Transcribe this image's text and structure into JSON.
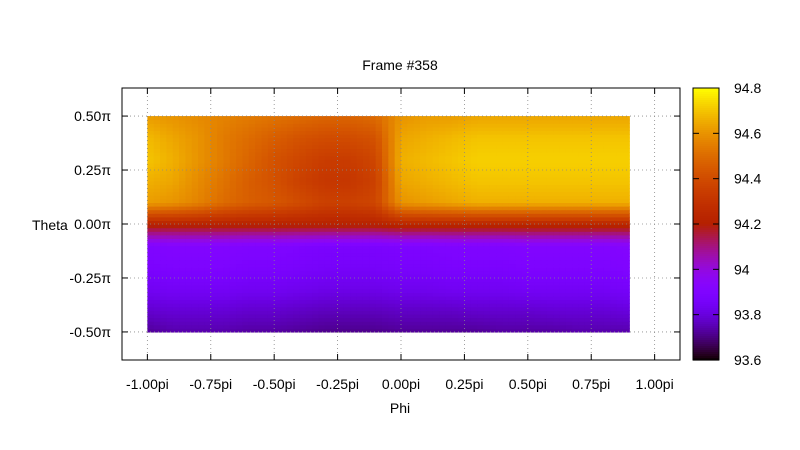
{
  "chart_data": {
    "type": "heatmap",
    "title": "Frame #358",
    "xlabel": "Phi",
    "ylabel": "Theta",
    "xlim": [
      -1.1,
      1.1
    ],
    "ylim": [
      -0.63,
      0.63
    ],
    "x_ticks": [
      -1.0,
      -0.75,
      -0.5,
      -0.25,
      0.0,
      0.25,
      0.5,
      0.75,
      1.0
    ],
    "x_tick_labels": [
      "-1.00pi",
      "-0.75pi",
      "-0.50pi",
      "-0.25pi",
      "0.00pi",
      "0.25pi",
      "0.50pi",
      "0.75pi",
      "1.00pi"
    ],
    "y_ticks": [
      0.5,
      0.25,
      0.0,
      -0.25,
      -0.5
    ],
    "y_tick_labels": [
      "0.50π",
      "0.25π",
      "0.00π",
      "-0.25π",
      "-0.50π"
    ],
    "grid": true,
    "data_extent": {
      "phi": [
        -1.0,
        0.9
      ],
      "theta": [
        -0.5,
        0.5
      ]
    },
    "colorbar": {
      "range": [
        93.6,
        94.8
      ],
      "ticks": [
        94.8,
        94.6,
        94.4,
        94.2,
        94,
        93.8,
        93.6
      ],
      "tick_labels": [
        "94.8",
        "94.6",
        "94.4",
        "94.2",
        "94",
        "93.8",
        "93.6"
      ],
      "palette": "gnuplot-pm3d-black-blue-violet-red-yellow"
    },
    "grid_phi": [
      -1.0,
      -0.9,
      -0.8,
      -0.7,
      -0.6,
      -0.5,
      -0.4,
      -0.3,
      -0.2,
      -0.1,
      0.0,
      0.1,
      0.2,
      0.3,
      0.4,
      0.5,
      0.6,
      0.7,
      0.8,
      0.9
    ],
    "grid_theta": [
      -0.5,
      -0.4,
      -0.3,
      -0.2,
      -0.1,
      0.0,
      0.1,
      0.2,
      0.3,
      0.4,
      0.5
    ],
    "values": [
      [
        93.72,
        93.74,
        93.74,
        93.74,
        93.73,
        93.73,
        93.72,
        93.71,
        93.71,
        93.71,
        93.72,
        93.72,
        93.72,
        93.72,
        93.73,
        93.73,
        93.73,
        93.74,
        93.74,
        93.74
      ],
      [
        93.78,
        93.79,
        93.79,
        93.79,
        93.78,
        93.78,
        93.77,
        93.76,
        93.76,
        93.76,
        93.77,
        93.77,
        93.77,
        93.78,
        93.78,
        93.78,
        93.79,
        93.79,
        93.79,
        93.8
      ],
      [
        93.84,
        93.85,
        93.85,
        93.85,
        93.84,
        93.84,
        93.83,
        93.82,
        93.82,
        93.82,
        93.83,
        93.83,
        93.84,
        93.84,
        93.84,
        93.85,
        93.85,
        93.85,
        93.85,
        93.86
      ],
      [
        93.88,
        93.89,
        93.89,
        93.89,
        93.88,
        93.88,
        93.87,
        93.86,
        93.86,
        93.86,
        93.87,
        93.87,
        93.88,
        93.88,
        93.88,
        93.89,
        93.89,
        93.89,
        93.89,
        93.9
      ],
      [
        93.9,
        93.91,
        93.91,
        93.91,
        93.9,
        93.9,
        93.89,
        93.88,
        93.88,
        93.88,
        93.89,
        93.89,
        93.9,
        93.9,
        93.9,
        93.91,
        93.91,
        93.91,
        93.91,
        93.92
      ],
      [
        94.22,
        94.22,
        94.22,
        94.22,
        94.22,
        94.22,
        94.22,
        94.22,
        94.22,
        94.22,
        94.24,
        94.24,
        94.24,
        94.24,
        94.24,
        94.24,
        94.24,
        94.24,
        94.24,
        94.24
      ],
      [
        94.62,
        94.6,
        94.56,
        94.5,
        94.46,
        94.44,
        94.4,
        94.36,
        94.36,
        94.38,
        94.6,
        94.62,
        94.64,
        94.66,
        94.66,
        94.66,
        94.66,
        94.66,
        94.66,
        94.66
      ],
      [
        94.66,
        94.64,
        94.58,
        94.52,
        94.46,
        94.42,
        94.36,
        94.32,
        94.32,
        94.36,
        94.64,
        94.66,
        94.68,
        94.7,
        94.7,
        94.7,
        94.7,
        94.7,
        94.7,
        94.7
      ],
      [
        94.7,
        94.66,
        94.6,
        94.54,
        94.48,
        94.42,
        94.38,
        94.34,
        94.34,
        94.38,
        94.66,
        94.68,
        94.7,
        94.72,
        94.72,
        94.72,
        94.72,
        94.72,
        94.72,
        94.72
      ],
      [
        94.68,
        94.64,
        94.6,
        94.54,
        94.5,
        94.46,
        94.42,
        94.4,
        94.4,
        94.42,
        94.64,
        94.66,
        94.68,
        94.7,
        94.7,
        94.7,
        94.7,
        94.7,
        94.7,
        94.7
      ],
      [
        94.62,
        94.6,
        94.58,
        94.56,
        94.54,
        94.52,
        94.5,
        94.48,
        94.48,
        94.5,
        94.6,
        94.62,
        94.62,
        94.64,
        94.64,
        94.64,
        94.64,
        94.64,
        94.64,
        94.64
      ]
    ]
  }
}
